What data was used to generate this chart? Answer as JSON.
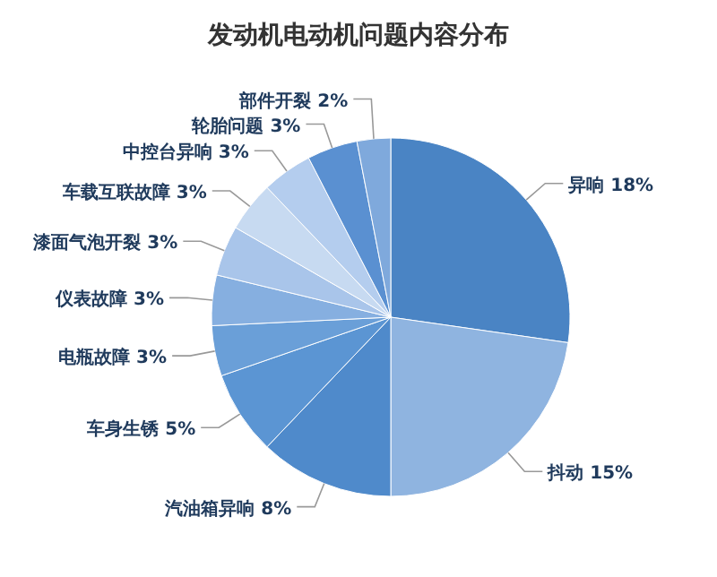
{
  "chart_data": {
    "type": "pie",
    "title": "发动机电动机问题内容分布",
    "categories": [
      "异响",
      "抖动",
      "汽油箱异响",
      "车身生锈",
      "电瓶故障",
      "仪表故障",
      "漆面气泡开裂",
      "车载互联故障",
      "中控台异响",
      "轮胎问题",
      "部件开裂"
    ],
    "values": [
      18,
      15,
      8,
      5,
      3,
      3,
      3,
      3,
      3,
      3,
      2
    ],
    "value_labels": [
      "18%",
      "15%",
      "8%",
      "5%",
      "3%",
      "3%",
      "3%",
      "3%",
      "3%",
      "3%",
      "2%"
    ],
    "colors": [
      "#4a84c4",
      "#8fb4e0",
      "#4f8acb",
      "#5b95d3",
      "#6a9fd8",
      "#86afe0",
      "#a9c5ea",
      "#c7daf1",
      "#b4cdee",
      "#5a90d1",
      "#7fa9dc"
    ]
  }
}
